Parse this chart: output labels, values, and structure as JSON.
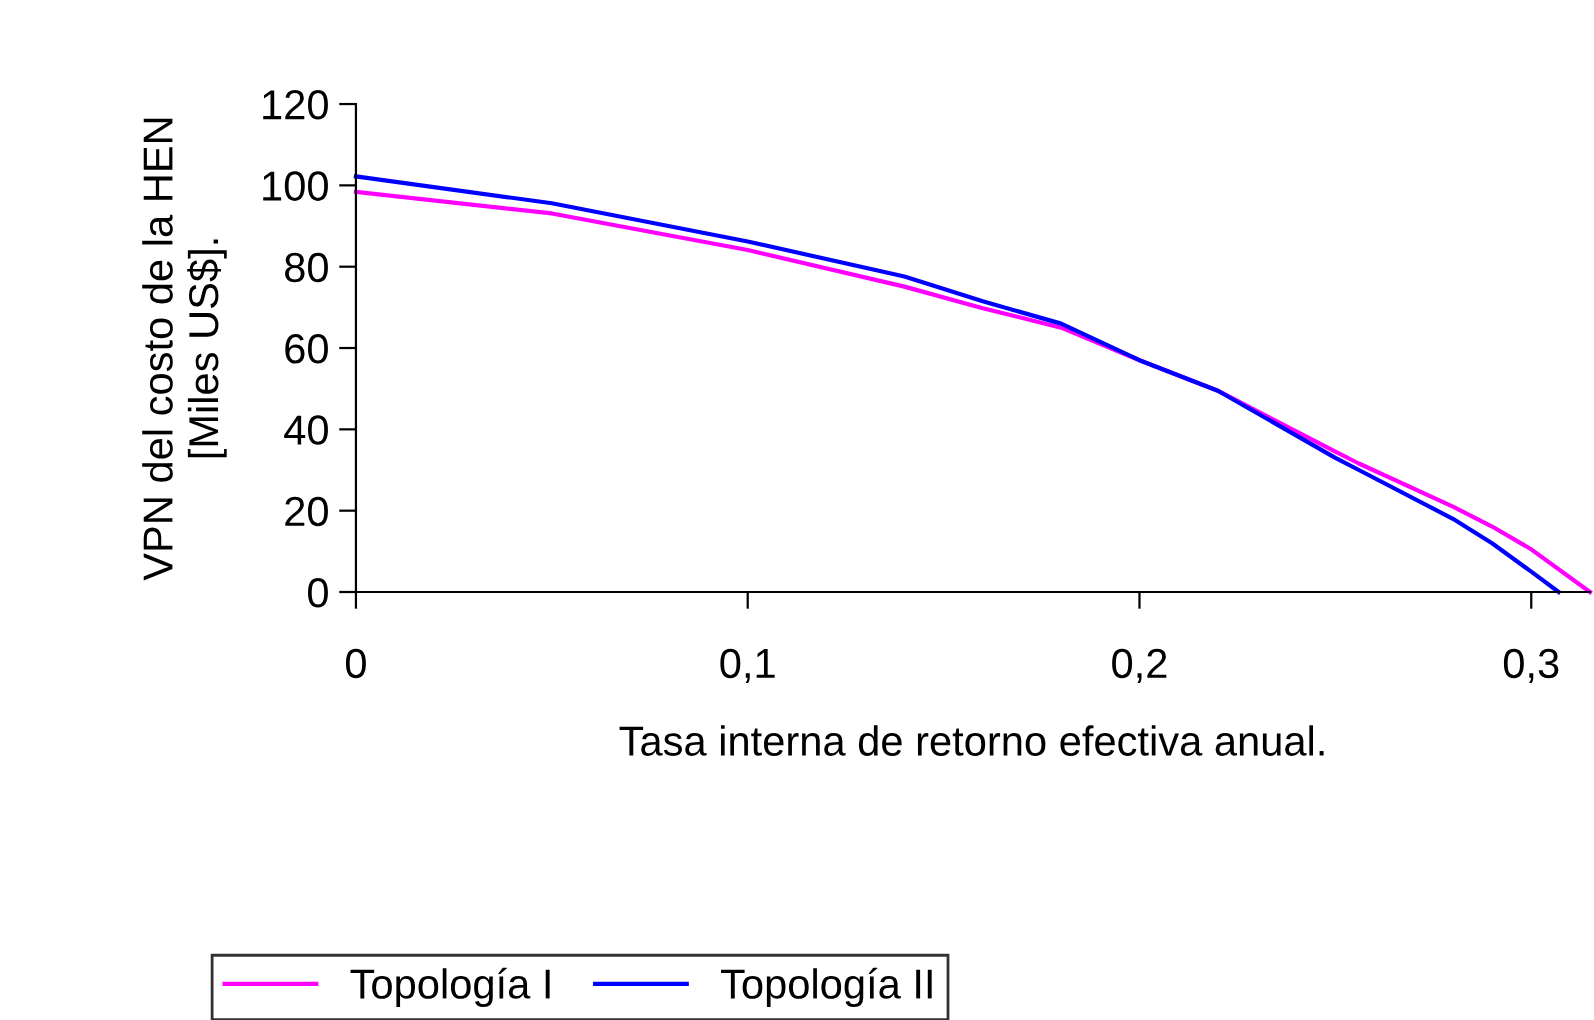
{
  "chart_data": {
    "type": "line",
    "xlabel": "Tasa interna de retorno efectiva anual.",
    "ylabel": "VPN del costo de la HEN\n[Miles US$].",
    "xlim": [
      0,
      0.315
    ],
    "xticks": [
      0,
      {
        "value": 0.1,
        "label": "0,1"
      },
      {
        "value": 0.2,
        "label": "0,2"
      },
      {
        "value": 0.3,
        "label": "0,3"
      }
    ],
    "ylim": [
      0,
      120
    ],
    "yticks": [
      0,
      20,
      40,
      60,
      80,
      100,
      120
    ],
    "grid": false,
    "legend": "bottom",
    "marker": "none",
    "line_style": "solid",
    "series": [
      {
        "name": "Topología I",
        "color": "#ff00ff",
        "x": [
          0,
          0.05,
          0.1,
          0.14,
          0.16,
          0.18,
          0.2,
          0.22,
          0.25,
          0.256,
          0.28,
          0.29,
          0.3,
          0.315
        ],
        "values": [
          98.4,
          93.1,
          84.1,
          75.1,
          69.8,
          65,
          57,
          49.5,
          34.5,
          31.6,
          21,
          16.1,
          10.5,
          0
        ]
      },
      {
        "name": "Topología II",
        "color": "#0000ff",
        "x": [
          0,
          0.05,
          0.1,
          0.14,
          0.16,
          0.18,
          0.2,
          0.22,
          0.25,
          0.256,
          0.28,
          0.29,
          0.3,
          0.307
        ],
        "values": [
          102.2,
          95.6,
          86.2,
          77.6,
          71.5,
          66,
          57,
          49.5,
          33,
          30,
          18,
          12,
          5,
          0
        ]
      }
    ]
  }
}
